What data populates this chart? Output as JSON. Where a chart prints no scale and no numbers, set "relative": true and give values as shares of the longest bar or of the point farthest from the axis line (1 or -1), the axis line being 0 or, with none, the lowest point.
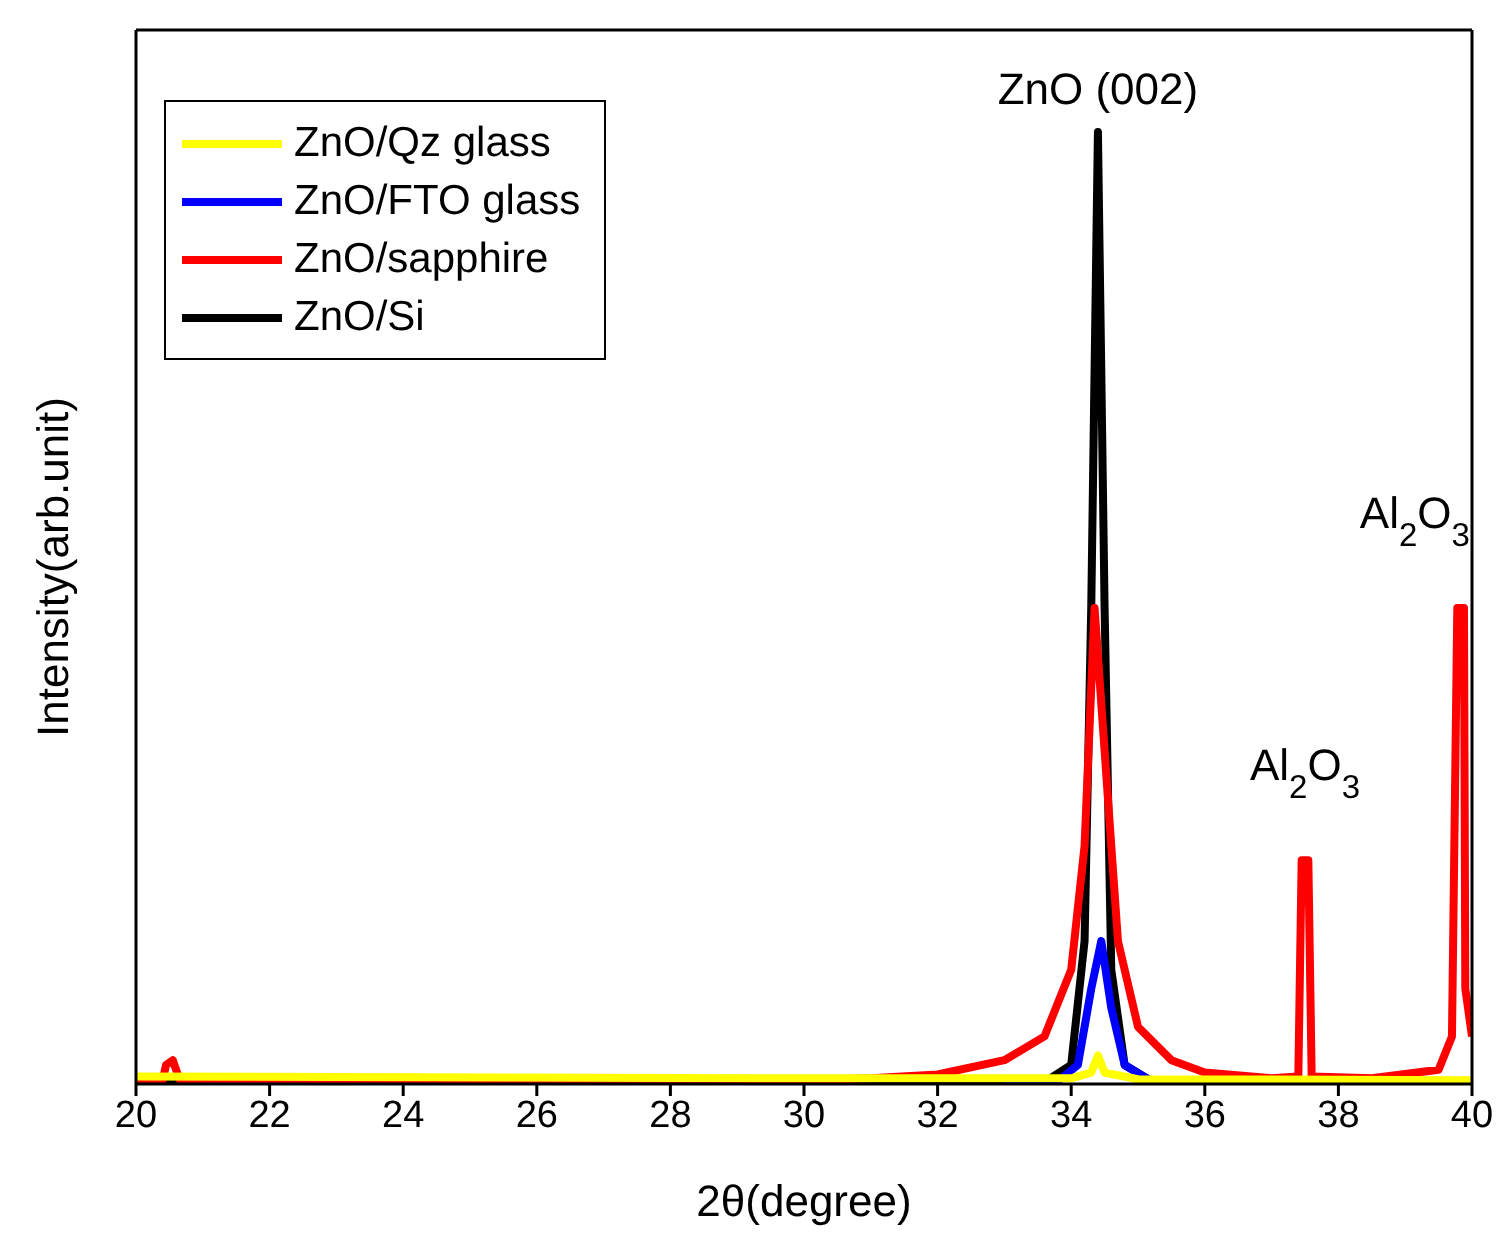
{
  "chart_data": {
    "type": "line",
    "relative": true,
    "xlabel": "2θ(degree)",
    "ylabel": "Intensity(arb.unit)",
    "xlim": [
      20,
      40
    ],
    "xticks": [
      20,
      22,
      24,
      26,
      28,
      30,
      32,
      34,
      36,
      38,
      40
    ],
    "legend": "top left",
    "marker": "none",
    "line_style": "solid",
    "annotations": [
      {
        "text": "ZnO (002)",
        "x": 34.4,
        "y": 1.0
      },
      {
        "text": "Al$_{2}$O$_{3}$",
        "x": 37.5,
        "y": 0.235
      },
      {
        "text": "Al$_{2}$O$_{3}$",
        "x": 39.85,
        "y": 0.5
      }
    ],
    "series": [
      {
        "name": "ZnO/Qz glass",
        "color": "#ffff00",
        "x": [
          20,
          30,
          34,
          34.3,
          34.4,
          34.5,
          35,
          40
        ],
        "values": [
          0.008,
          0.006,
          0.006,
          0.012,
          0.03,
          0.012,
          0.005,
          0.004
        ]
      },
      {
        "name": "ZnO/FTO glass",
        "color": "#0000ff",
        "x": [
          33,
          33.6,
          33.8,
          34.1,
          34.3,
          34.45,
          34.6,
          34.8,
          35.2,
          36,
          40
        ],
        "values": [
          0.0,
          0.005,
          0.003,
          0.02,
          0.1,
          0.15,
          0.08,
          0.02,
          0.003,
          0.0,
          0.0
        ]
      },
      {
        "name": "ZnO/sapphire",
        "color": "#ff0000",
        "x": [
          20,
          20.4,
          20.45,
          20.55,
          20.65,
          22,
          30,
          31,
          32,
          33,
          33.6,
          34.0,
          34.2,
          34.35,
          34.5,
          34.7,
          35.0,
          35.5,
          36,
          37,
          37.4,
          37.45,
          37.55,
          37.6,
          38.5,
          39.5,
          39.7,
          39.78,
          39.88,
          39.9,
          40
        ],
        "values": [
          0.004,
          0.004,
          0.02,
          0.025,
          0.005,
          0.004,
          0.004,
          0.006,
          0.01,
          0.025,
          0.05,
          0.12,
          0.25,
          0.5,
          0.35,
          0.15,
          0.06,
          0.025,
          0.012,
          0.006,
          0.008,
          0.235,
          0.235,
          0.008,
          0.006,
          0.015,
          0.05,
          0.5,
          0.5,
          0.1,
          0.05
        ]
      },
      {
        "name": "ZnO/Si",
        "color": "#000000",
        "x": [
          20,
          33.6,
          34.0,
          34.2,
          34.3,
          34.4,
          34.5,
          34.6,
          34.8,
          35.2,
          40
        ],
        "values": [
          0.002,
          0.002,
          0.02,
          0.15,
          0.5,
          1.0,
          0.5,
          0.12,
          0.02,
          0.003,
          0.002
        ]
      }
    ]
  }
}
